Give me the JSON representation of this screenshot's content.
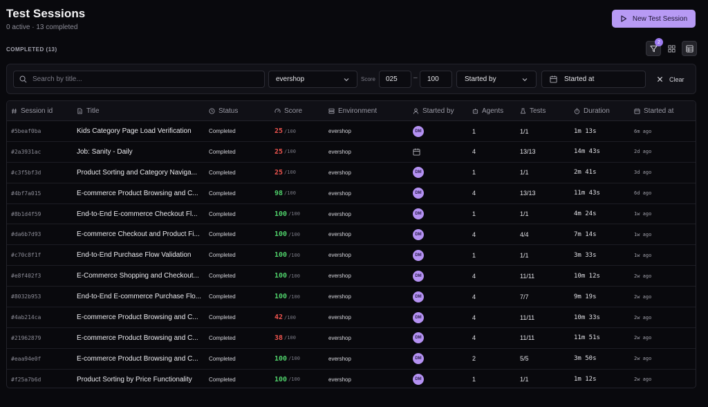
{
  "header": {
    "title": "Test Sessions",
    "subtitle": "0 active · 13 completed",
    "new_button": "New Test Session"
  },
  "section_label": "COMPLETED (13)",
  "view_tools": {
    "filter_badge": "2",
    "icons": [
      "filter-icon",
      "grid-view-icon",
      "table-view-icon"
    ]
  },
  "filters": {
    "search_placeholder": "Search by title...",
    "environment": "evershop",
    "score_label": "Score",
    "score_min": "025",
    "score_dash": "–",
    "score_max": "100",
    "started_by": "Started by",
    "started_at": "Started at",
    "clear": "Clear"
  },
  "columns": {
    "session_id": "Session id",
    "title": "Title",
    "status": "Status",
    "score": "Score",
    "environment": "Environment",
    "started_by": "Started by",
    "agents": "Agents",
    "tests": "Tests",
    "duration": "Duration",
    "started_at": "Started at"
  },
  "colors": {
    "accent": "#b79af4",
    "score_low": "#f0554f",
    "score_high": "#4fd06a"
  },
  "rows": [
    {
      "id": "#5beaf0ba",
      "title": "Kids Category Page Load Verification",
      "status": "Completed",
      "score": "25",
      "score_of": "/100",
      "env": "evershop",
      "by": "DM",
      "agents": "1",
      "tests": "1/1",
      "duration": "1m 13s",
      "started_at": "6m ago"
    },
    {
      "id": "#2a3931ac",
      "title": "Job: Sanity - Daily",
      "status": "Completed",
      "score": "25",
      "score_of": "/100",
      "env": "evershop",
      "by": "",
      "agents": "4",
      "tests": "13/13",
      "duration": "14m 43s",
      "started_at": "2d ago"
    },
    {
      "id": "#c3f5bf3d",
      "title": "Product Sorting and Category Naviga...",
      "status": "Completed",
      "score": "25",
      "score_of": "/100",
      "env": "evershop",
      "by": "DM",
      "agents": "1",
      "tests": "1/1",
      "duration": "2m 41s",
      "started_at": "3d ago"
    },
    {
      "id": "#4bf7a015",
      "title": "E-commerce Product Browsing and C...",
      "status": "Completed",
      "score": "98",
      "score_of": "/100",
      "env": "evershop",
      "by": "DM",
      "agents": "4",
      "tests": "13/13",
      "duration": "11m 43s",
      "started_at": "6d ago"
    },
    {
      "id": "#8b1d4f59",
      "title": "End-to-End E-commerce Checkout Fl...",
      "status": "Completed",
      "score": "100",
      "score_of": "/100",
      "env": "evershop",
      "by": "DM",
      "agents": "1",
      "tests": "1/1",
      "duration": "4m 24s",
      "started_at": "1w ago"
    },
    {
      "id": "#da6b7d93",
      "title": "E-commerce Checkout and Product Fi...",
      "status": "Completed",
      "score": "100",
      "score_of": "/100",
      "env": "evershop",
      "by": "DM",
      "agents": "4",
      "tests": "4/4",
      "duration": "7m 14s",
      "started_at": "1w ago"
    },
    {
      "id": "#c70c8f1f",
      "title": "End-to-End Purchase Flow Validation",
      "status": "Completed",
      "score": "100",
      "score_of": "/100",
      "env": "evershop",
      "by": "DM",
      "agents": "1",
      "tests": "1/1",
      "duration": "3m 33s",
      "started_at": "1w ago"
    },
    {
      "id": "#e8f402f3",
      "title": "E-Commerce Shopping and Checkout...",
      "status": "Completed",
      "score": "100",
      "score_of": "/100",
      "env": "evershop",
      "by": "DM",
      "agents": "4",
      "tests": "11/11",
      "duration": "10m 12s",
      "started_at": "2w ago"
    },
    {
      "id": "#8032b953",
      "title": "End-to-End E-commerce Purchase Flo...",
      "status": "Completed",
      "score": "100",
      "score_of": "/100",
      "env": "evershop",
      "by": "DM",
      "agents": "4",
      "tests": "7/7",
      "duration": "9m 19s",
      "started_at": "2w ago"
    },
    {
      "id": "#4ab214ca",
      "title": "E-commerce Product Browsing and C...",
      "status": "Completed",
      "score": "42",
      "score_of": "/100",
      "env": "evershop",
      "by": "DM",
      "agents": "4",
      "tests": "11/11",
      "duration": "10m 33s",
      "started_at": "2w ago"
    },
    {
      "id": "#21962879",
      "title": "E-commerce Product Browsing and C...",
      "status": "Completed",
      "score": "38",
      "score_of": "/100",
      "env": "evershop",
      "by": "DM",
      "agents": "4",
      "tests": "11/11",
      "duration": "11m 51s",
      "started_at": "2w ago"
    },
    {
      "id": "#eaa94e0f",
      "title": "E-commerce Product Browsing and C...",
      "status": "Completed",
      "score": "100",
      "score_of": "/100",
      "env": "evershop",
      "by": "DM",
      "agents": "2",
      "tests": "5/5",
      "duration": "3m 50s",
      "started_at": "2w ago"
    },
    {
      "id": "#f25a7b6d",
      "title": "Product Sorting by Price Functionality",
      "status": "Completed",
      "score": "100",
      "score_of": "/100",
      "env": "evershop",
      "by": "DM",
      "agents": "1",
      "tests": "1/1",
      "duration": "1m 12s",
      "started_at": "2w ago"
    }
  ]
}
